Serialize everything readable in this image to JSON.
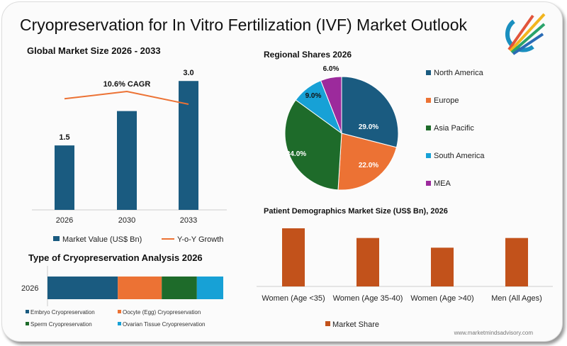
{
  "title": "Cryopreservation for In Vitro Fertilization (IVF) Market Outlook",
  "website": "www.marketmindsadvisory.com",
  "colors": {
    "dark_blue": "#1a5b80",
    "orange": "#ec7234",
    "green": "#1e6b2a",
    "light_blue": "#17a1d6",
    "purple": "#9c2a9c",
    "rust": "#c2521b"
  },
  "chart_data": [
    {
      "type": "bar",
      "title": "Global Market Size 2026 - 2033",
      "categories": [
        "2026",
        "2030",
        "2033"
      ],
      "series": [
        {
          "name": "Market Value (US$ Bn)",
          "values": [
            1.5,
            2.3,
            3.0
          ],
          "labels": [
            "1.5",
            "",
            "3.0"
          ]
        },
        {
          "name": "Y-o-Y Growth",
          "type": "line",
          "values": [
            9.8,
            10.6,
            9.2
          ]
        }
      ],
      "annotation": "10.6% CAGR",
      "ylim": [
        0,
        3.4
      ]
    },
    {
      "type": "pie",
      "title": "Regional Shares 2026",
      "categories": [
        "North America",
        "Europe",
        "Asia Pacific",
        "South America",
        "MEA"
      ],
      "values": [
        29.0,
        22.0,
        34.0,
        9.0,
        6.0
      ],
      "labels": [
        "29.0%",
        "22.0%",
        "34.0%",
        "9.0%",
        "6.0%"
      ],
      "legend": "right"
    },
    {
      "type": "bar",
      "title": "Type of Cryopreservation Analysis 2026",
      "orientation": "horizontal-stacked",
      "categories": [
        "2026"
      ],
      "series": [
        {
          "name": "Embryo Cryopreservation",
          "values": [
            40
          ]
        },
        {
          "name": "Oocyte (Egg) Cryopreservation",
          "values": [
            25
          ]
        },
        {
          "name": "Sperm Cryopreservation",
          "values": [
            20
          ]
        },
        {
          "name": "Ovarian Tissue Cryopreservation",
          "values": [
            15
          ]
        }
      ]
    },
    {
      "type": "bar",
      "title": "Patient Demographics Market Size (US$ Bn), 2026",
      "categories": [
        "Women (Age <35)",
        "Women (Age 35-40)",
        "Women (Age >40)",
        "Men (All Ages)"
      ],
      "series": [
        {
          "name": "Market Share",
          "values": [
            30,
            25,
            20,
            25
          ]
        }
      ]
    }
  ]
}
